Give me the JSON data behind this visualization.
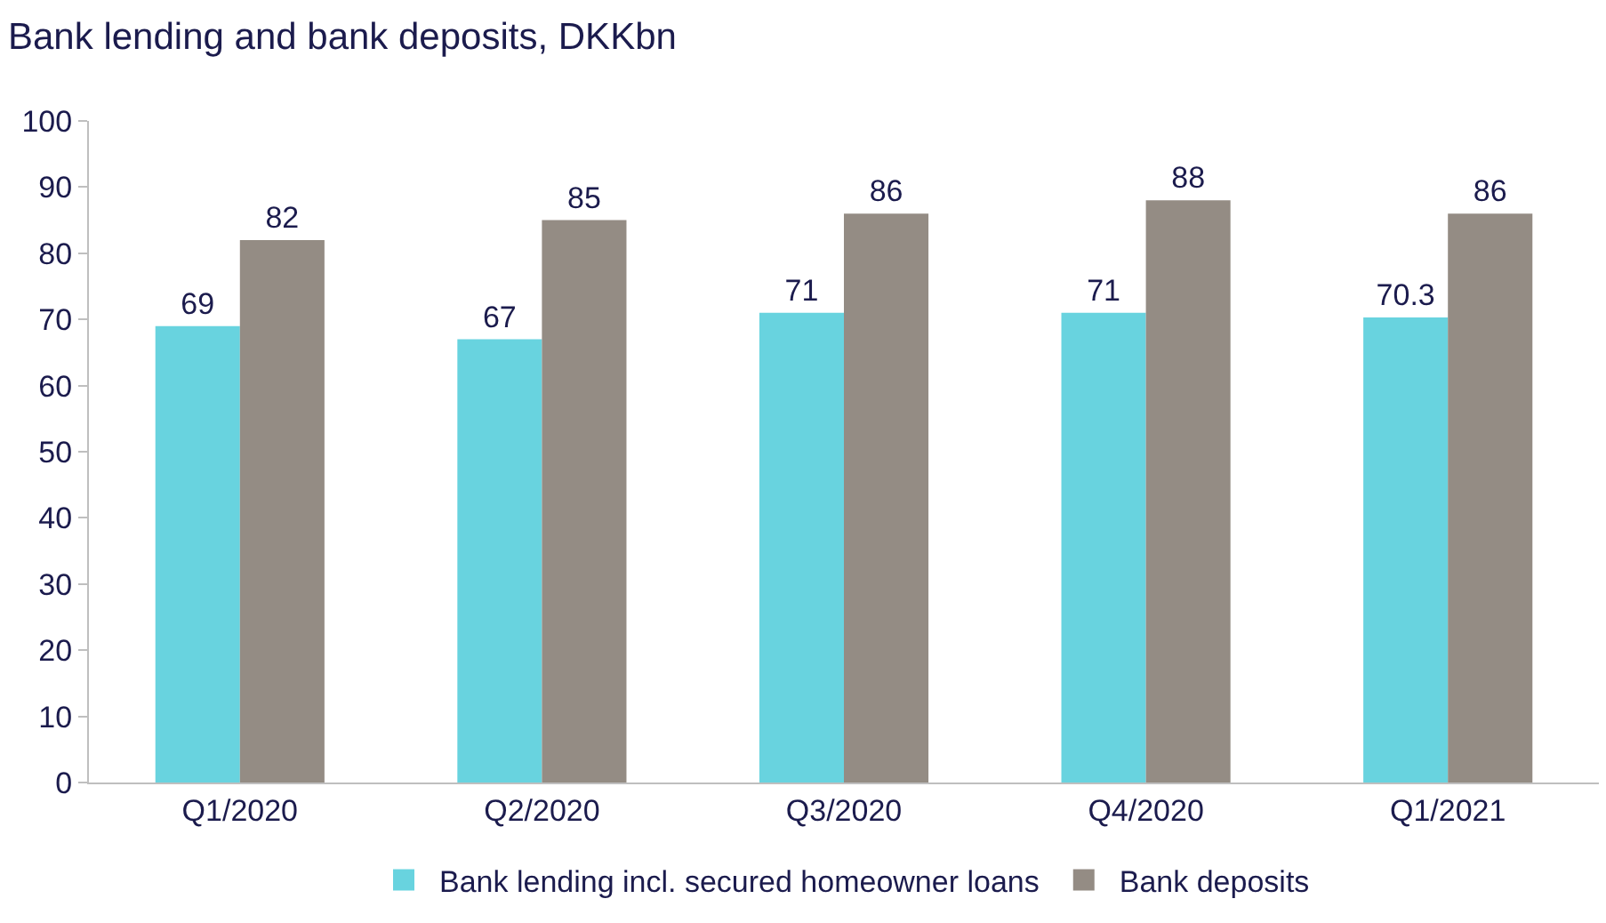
{
  "chart_data": {
    "type": "bar",
    "title": "Bank lending and bank deposits, DKKbn",
    "categories": [
      "Q1/2020",
      "Q2/2020",
      "Q3/2020",
      "Q4/2020",
      "Q1/2021"
    ],
    "series": [
      {
        "name": "Bank lending incl. secured homeowner loans",
        "color": "#68d3df",
        "values": [
          69,
          67,
          71,
          71,
          70.3
        ]
      },
      {
        "name": "Bank deposits",
        "color": "#948c84",
        "values": [
          82,
          85,
          86,
          88,
          86
        ]
      }
    ],
    "ylim": [
      0,
      100
    ],
    "yticks": [
      0,
      10,
      20,
      30,
      40,
      50,
      60,
      70,
      80,
      90,
      100
    ],
    "legend": "bottom",
    "data_labels": true
  }
}
